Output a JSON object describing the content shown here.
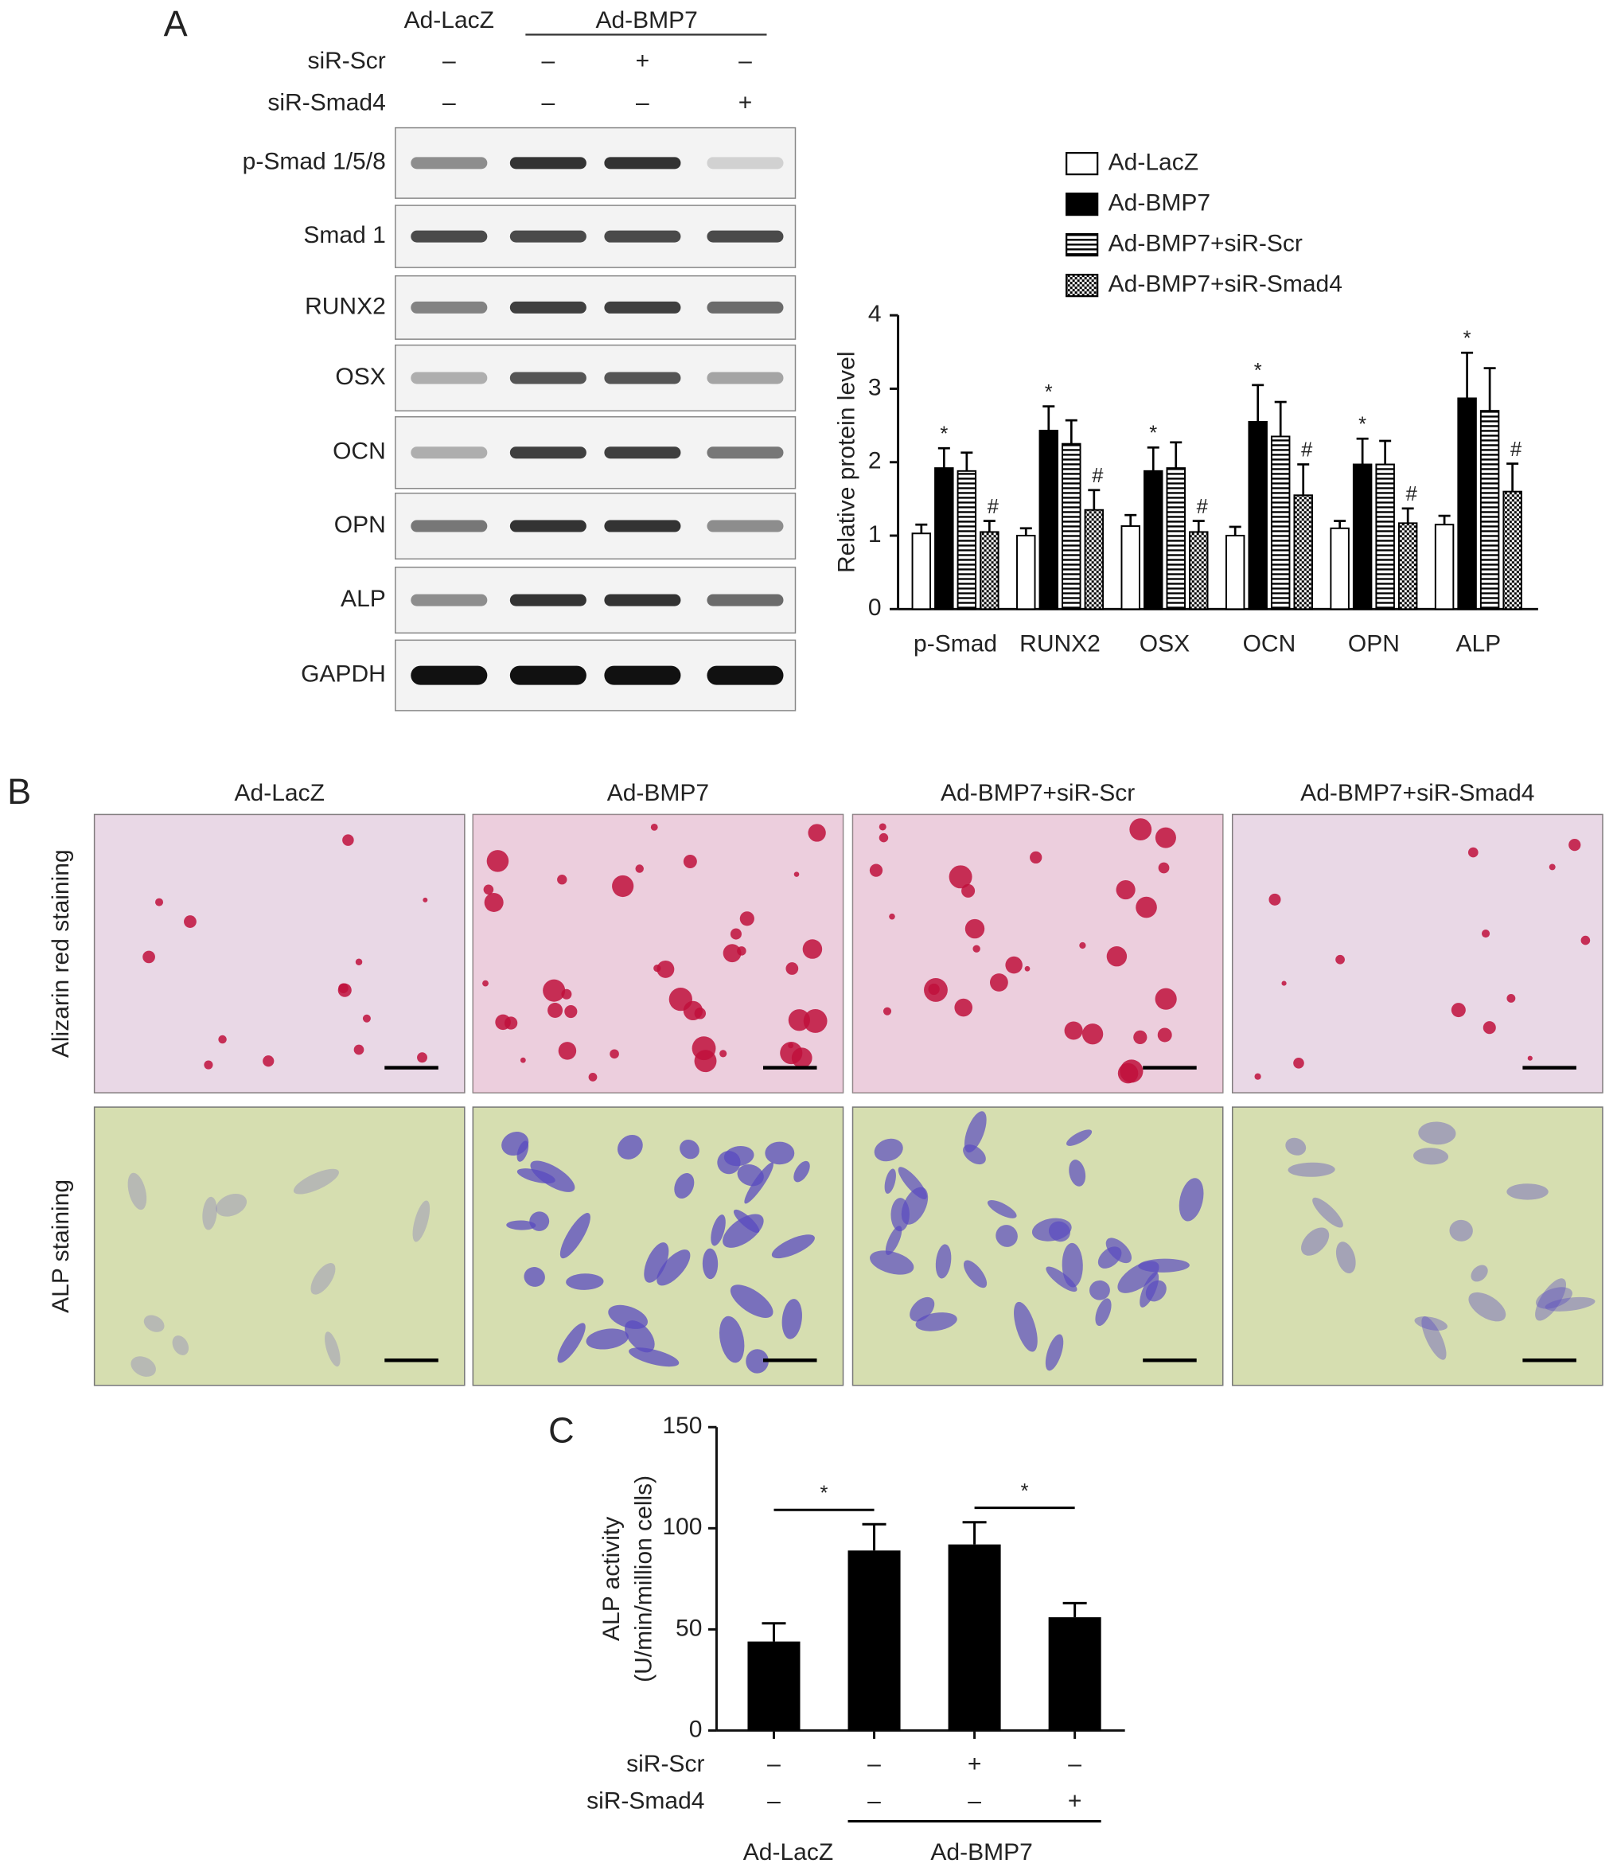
{
  "panel_labels": [
    "A",
    "B",
    "C"
  ],
  "blot": {
    "lane_groups": [
      "Ad-LacZ",
      "Ad-BMP7"
    ],
    "conditions": [
      {
        "label": "siR-Scr",
        "lanes": [
          "–",
          "–",
          "+",
          "–"
        ]
      },
      {
        "label": "siR-Smad4",
        "lanes": [
          "–",
          "–",
          "–",
          "+"
        ]
      }
    ],
    "bands": [
      "p-Smad 1/5/8",
      "Smad 1",
      "RUNX2",
      "OSX",
      "OCN",
      "OPN",
      "ALP",
      "GAPDH"
    ]
  },
  "staining": {
    "columns": [
      "Ad-LacZ",
      "Ad-BMP7",
      "Ad-BMP7+siR-Scr",
      "Ad-BMP7+siR-Smad4"
    ],
    "rows": [
      "Alizarin red staining",
      "ALP staining"
    ]
  },
  "chart_data": [
    {
      "type": "bar",
      "ylabel": "Relative protein level",
      "categories": [
        "p-Smad",
        "RUNX2",
        "OSX",
        "OCN",
        "OPN",
        "ALP"
      ],
      "series": [
        {
          "name": "Ad-LacZ",
          "color": "#ffffff",
          "pattern": "solid",
          "values": [
            1.03,
            1.0,
            1.13,
            1.0,
            1.1,
            1.15
          ],
          "errors": [
            0.12,
            0.1,
            0.15,
            0.12,
            0.1,
            0.12
          ]
        },
        {
          "name": "Ad-BMP7",
          "color": "#000000",
          "pattern": "solid",
          "values": [
            1.92,
            2.43,
            1.88,
            2.55,
            1.97,
            2.87
          ],
          "errors": [
            0.27,
            0.33,
            0.32,
            0.5,
            0.35,
            0.62
          ],
          "value_annotations": [
            "*",
            "*",
            "*",
            "*",
            "*",
            "*"
          ]
        },
        {
          "name": "Ad-BMP7+siR-Scr",
          "color": "#000000",
          "pattern": "horizontal-lines",
          "values": [
            1.88,
            2.25,
            1.92,
            2.35,
            1.97,
            2.7
          ],
          "errors": [
            0.25,
            0.32,
            0.35,
            0.47,
            0.32,
            0.58
          ]
        },
        {
          "name": "Ad-BMP7+siR-Smad4",
          "color": "#000000",
          "pattern": "crosshatch",
          "values": [
            1.05,
            1.35,
            1.05,
            1.55,
            1.17,
            1.6
          ],
          "errors": [
            0.15,
            0.27,
            0.15,
            0.42,
            0.2,
            0.38
          ],
          "value_annotations": [
            "#",
            "#",
            "#",
            "#",
            "#",
            "#"
          ]
        }
      ],
      "ylim": [
        0,
        4
      ],
      "yticks": [
        0,
        1,
        2,
        3,
        4
      ],
      "legend": "top"
    },
    {
      "type": "bar",
      "ylabel": [
        "ALP activity",
        "(U/min/million cells)"
      ],
      "categories": [
        null,
        null,
        null,
        null
      ],
      "values": [
        44,
        89,
        92,
        56
      ],
      "errors": [
        9,
        13,
        11,
        7
      ],
      "color": "#000000",
      "ylim": [
        0,
        150
      ],
      "yticks": [
        0,
        50,
        100,
        150
      ],
      "significance": [
        "*",
        "*"
      ],
      "conditions": [
        {
          "label": "siR-Scr",
          "values": [
            "–",
            "–",
            "+",
            "–"
          ]
        },
        {
          "label": "siR-Smad4",
          "values": [
            "–",
            "–",
            "–",
            "+"
          ]
        }
      ],
      "groups": [
        "Ad-LacZ",
        "Ad-BMP7"
      ]
    }
  ]
}
